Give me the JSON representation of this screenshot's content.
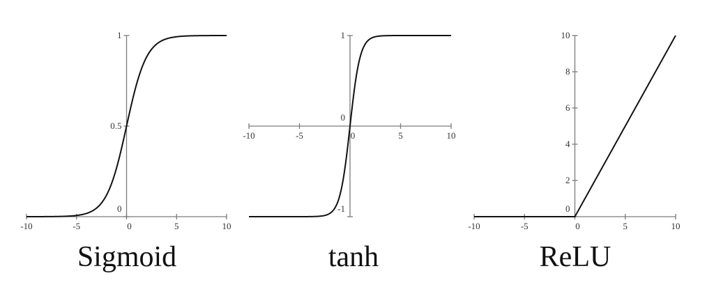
{
  "colors": {
    "curve": "#111111",
    "axis": "#7a7a7a",
    "text": "#333333",
    "background": "#ffffff"
  },
  "chart_data": [
    {
      "type": "line",
      "function": "sigmoid",
      "title": "Sigmoid",
      "xlabel": "",
      "ylabel": "",
      "xlim": [
        -10,
        10
      ],
      "ylim": [
        0,
        1
      ],
      "x_ticks": [
        -10,
        -5,
        0,
        5,
        10
      ],
      "x_tick_labels": [
        "-10",
        "-5",
        "0",
        "5",
        "10"
      ],
      "y_ticks": [
        0,
        0.5,
        1
      ],
      "y_tick_labels": [
        "0",
        "0.5",
        "1"
      ],
      "grid": false,
      "legend": "none",
      "x": [
        -10,
        -8,
        -6,
        -5,
        -4,
        -3,
        -2,
        -1,
        0,
        1,
        2,
        3,
        4,
        5,
        6,
        8,
        10
      ],
      "values": [
        4.54e-05,
        0.000335,
        0.00247,
        0.0067,
        0.018,
        0.047,
        0.119,
        0.269,
        0.5,
        0.731,
        0.881,
        0.953,
        0.982,
        0.993,
        0.998,
        0.9997,
        0.99995
      ]
    },
    {
      "type": "line",
      "function": "tanh",
      "title": "tanh",
      "xlabel": "",
      "ylabel": "",
      "xlim": [
        -10,
        10
      ],
      "ylim": [
        -1,
        1
      ],
      "x_ticks": [
        -10,
        -5,
        0,
        5,
        10
      ],
      "x_tick_labels": [
        "-10",
        "-5",
        "0",
        "5",
        "10"
      ],
      "y_ticks": [
        -1,
        0,
        1
      ],
      "y_tick_labels": [
        "-1",
        "0",
        "1"
      ],
      "grid": false,
      "legend": "none",
      "x": [
        -10,
        -5,
        -3,
        -2,
        -1.5,
        -1,
        -0.5,
        0,
        0.5,
        1,
        1.5,
        2,
        3,
        5,
        10
      ],
      "values": [
        -1,
        -0.9999,
        -0.995,
        -0.964,
        -0.905,
        -0.762,
        -0.462,
        0,
        0.462,
        0.762,
        0.905,
        0.964,
        0.995,
        0.9999,
        1
      ]
    },
    {
      "type": "line",
      "function": "relu",
      "title": "ReLU",
      "xlabel": "",
      "ylabel": "",
      "xlim": [
        -10,
        10
      ],
      "ylim": [
        0,
        10
      ],
      "x_ticks": [
        -10,
        -5,
        0,
        5,
        10
      ],
      "x_tick_labels": [
        "-10",
        "-5",
        "0",
        "5",
        "10"
      ],
      "y_ticks": [
        0,
        2,
        4,
        6,
        8,
        10
      ],
      "y_tick_labels": [
        "0",
        "2",
        "4",
        "6",
        "8",
        "10"
      ],
      "grid": false,
      "legend": "none",
      "x": [
        -10,
        0,
        10
      ],
      "values": [
        0,
        0,
        10
      ]
    }
  ]
}
